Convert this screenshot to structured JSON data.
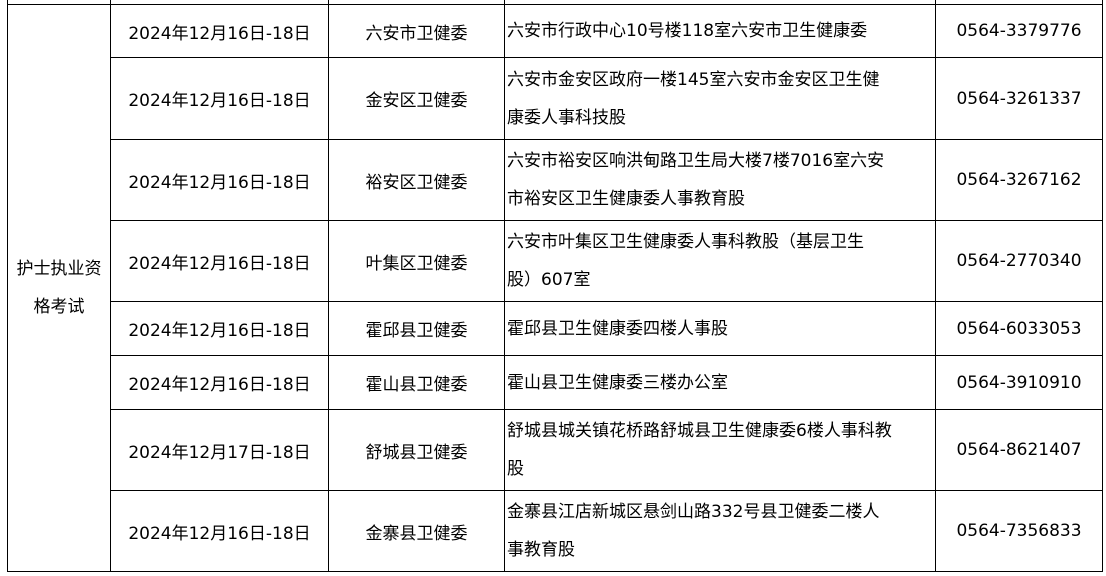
{
  "category": [
    "护士执业资",
    "格考试"
  ],
  "rows": [
    {
      "date": "2024年12月16日-18日",
      "org": "六安市卫健委",
      "address": [
        "六安市行政中心10号楼118室六安市卫生健康委"
      ],
      "phone": "0564-3379776"
    },
    {
      "date": "2024年12月16日-18日",
      "org": "金安区卫健委",
      "address": [
        "六安市金安区政府一楼145室六安市金安区卫生健",
        "康委人事科技股"
      ],
      "phone": "0564-3261337"
    },
    {
      "date": "2024年12月16日-18日",
      "org": "裕安区卫健委",
      "address": [
        "六安市裕安区响洪甸路卫生局大楼7楼7016室六安",
        "市裕安区卫生健康委人事教育股"
      ],
      "phone": "0564-3267162"
    },
    {
      "date": "2024年12月16日-18日",
      "org": "叶集区卫健委",
      "address": [
        "六安市叶集区卫生健康委人事科教股（基层卫生",
        "股）607室"
      ],
      "phone": "0564-2770340"
    },
    {
      "date": "2024年12月16日-18日",
      "org": "霍邱县卫健委",
      "address": [
        "霍邱县卫生健康委四楼人事股"
      ],
      "phone": "0564-6033053"
    },
    {
      "date": "2024年12月16日-18日",
      "org": "霍山县卫健委",
      "address": [
        "霍山县卫生健康委三楼办公室"
      ],
      "phone": "0564-3910910"
    },
    {
      "date": "2024年12月17日-18日",
      "org": "舒城县卫健委",
      "address": [
        "舒城县城关镇花桥路舒城县卫生健康委6楼人事科教",
        "股"
      ],
      "phone": "0564-8621407"
    },
    {
      "date": "2024年12月16日-18日",
      "org": "金寨县卫健委",
      "address": [
        "金寨县江店新城区悬剑山路332号县卫健委二楼人",
        "事教育股"
      ],
      "phone": "0564-7356833"
    }
  ]
}
